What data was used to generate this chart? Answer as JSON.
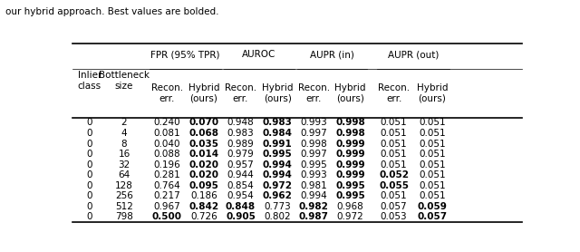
{
  "caption": "our hybrid approach. Best values are bolded.",
  "col_groups": [
    {
      "label": "FPR (95% TPR)"
    },
    {
      "label": "AUROC"
    },
    {
      "label": "AUPR (in)"
    },
    {
      "label": "AUPR (out)"
    }
  ],
  "left_headers": [
    "Inlier\nclass",
    "Bottleneck\nsize"
  ],
  "sub_headers": [
    "Recon.\nerr.",
    "Hybrid\n(ours)",
    "Recon.\nerr.",
    "Hybrid\n(ours)",
    "Recon.\nerr.",
    "Hybrid\n(ours)",
    "Recon.\nerr.",
    "Hybrid\n(ours)"
  ],
  "rows": [
    [
      0,
      2,
      0.24,
      0.07,
      0.948,
      0.983,
      0.993,
      0.998,
      0.051,
      0.051
    ],
    [
      0,
      4,
      0.081,
      0.068,
      0.983,
      0.984,
      0.997,
      0.998,
      0.051,
      0.051
    ],
    [
      0,
      8,
      0.04,
      0.035,
      0.989,
      0.991,
      0.998,
      0.999,
      0.051,
      0.051
    ],
    [
      0,
      16,
      0.088,
      0.014,
      0.979,
      0.995,
      0.997,
      0.999,
      0.051,
      0.051
    ],
    [
      0,
      32,
      0.196,
      0.02,
      0.957,
      0.994,
      0.995,
      0.999,
      0.051,
      0.051
    ],
    [
      0,
      64,
      0.281,
      0.02,
      0.944,
      0.994,
      0.993,
      0.999,
      0.052,
      0.051
    ],
    [
      0,
      128,
      0.764,
      0.095,
      0.854,
      0.972,
      0.981,
      0.995,
      0.055,
      0.051
    ],
    [
      0,
      256,
      0.217,
      0.186,
      0.954,
      0.962,
      0.994,
      0.995,
      0.051,
      0.051
    ],
    [
      0,
      512,
      0.967,
      0.842,
      0.848,
      0.773,
      0.982,
      0.968,
      0.057,
      0.059
    ],
    [
      0,
      798,
      0.5,
      0.726,
      0.905,
      0.802,
      0.987,
      0.972,
      0.053,
      0.057
    ]
  ],
  "bold": [
    [
      false,
      true,
      false,
      true,
      false,
      true,
      false,
      false
    ],
    [
      false,
      true,
      false,
      true,
      false,
      true,
      false,
      false
    ],
    [
      false,
      true,
      false,
      true,
      false,
      true,
      false,
      false
    ],
    [
      false,
      true,
      false,
      true,
      false,
      true,
      false,
      false
    ],
    [
      false,
      true,
      false,
      true,
      false,
      true,
      false,
      false
    ],
    [
      false,
      true,
      false,
      true,
      false,
      true,
      true,
      false
    ],
    [
      false,
      true,
      false,
      true,
      false,
      true,
      true,
      false
    ],
    [
      false,
      false,
      false,
      true,
      false,
      true,
      false,
      false
    ],
    [
      false,
      true,
      true,
      false,
      true,
      false,
      false,
      true
    ],
    [
      true,
      false,
      true,
      false,
      true,
      false,
      false,
      true
    ]
  ],
  "figsize": [
    6.4,
    2.78
  ],
  "dpi": 100,
  "fontsize": 7.5
}
